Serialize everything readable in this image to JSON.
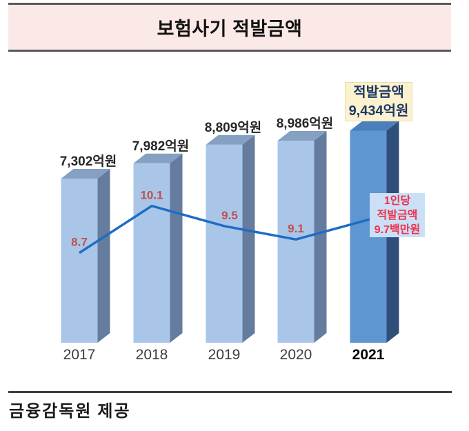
{
  "header": {
    "title": "보험사기 적발금액"
  },
  "footer": {
    "source": "금융감독원 제공"
  },
  "chart_data": {
    "type": "bar",
    "title": "보험사기 적발금액",
    "categories": [
      "2017",
      "2018",
      "2019",
      "2020",
      "2021"
    ],
    "highlight_index": 4,
    "series": [
      {
        "name": "적발금액(억원)",
        "type": "bar",
        "values": [
          7302,
          7982,
          8809,
          8986,
          9434
        ],
        "labels": [
          "7,302억원",
          "7,982억원",
          "8,809억원",
          "8,986억원",
          "9,434억원"
        ]
      },
      {
        "name": "1인당 적발금액(백만원)",
        "type": "line",
        "values": [
          8.7,
          10.1,
          9.5,
          9.1,
          9.7
        ],
        "labels": [
          "8.7",
          "10.1",
          "9.5",
          "9.1",
          ""
        ]
      }
    ],
    "annotations": {
      "total_callout": {
        "lines": [
          "적발금액",
          "9,434억원"
        ]
      },
      "per_person_callout": {
        "lines": [
          "1인당",
          "적발금액",
          "9.7백만원"
        ]
      }
    },
    "legend_position": "none",
    "grid": false,
    "colors": {
      "bar_front": "#A9C6E8",
      "bar_top": "#85A0C1",
      "bar_side": "#667C9E",
      "highlight_front": "#5E96D2",
      "highlight_top": "#4A7EBD",
      "highlight_side": "#2F4E79",
      "line": "#1F6CC4",
      "line_label": "#C0504D",
      "bar_label": "#262626",
      "year_label": "#3C3C3C",
      "year_highlight": "#000000",
      "banner_bg": "#FBE9E7",
      "total_callout_bg": "#FCF2D0",
      "total_callout_text": "#1F3864",
      "per_person_callout_bg": "#CBE0F6",
      "per_person_callout_text": "#EE3149"
    }
  }
}
